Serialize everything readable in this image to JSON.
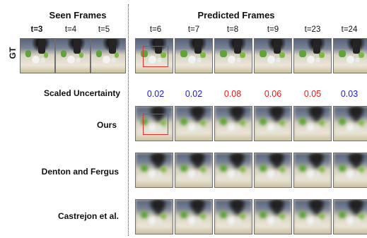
{
  "headers": {
    "seen": "Seen Frames",
    "predicted": "Predicted Frames"
  },
  "seen_timesteps": [
    "t=3",
    "t=4",
    "t=5"
  ],
  "predicted_timesteps": [
    "t=6",
    "t=7",
    "t=8",
    "t=9",
    "t=23",
    "t=24"
  ],
  "row_labels": {
    "gt": "GT",
    "uncertainty": "Scaled Uncertainty",
    "ours": "Ours",
    "denton": "Denton and Fergus",
    "castrejon": "Castrejon et al."
  },
  "uncertainty_values": [
    {
      "value": "0.02",
      "color": "#1a1ad6"
    },
    {
      "value": "0.02",
      "color": "#1a1ad6"
    },
    {
      "value": "0.08",
      "color": "#e01b1b"
    },
    {
      "value": "0.06",
      "color": "#e01b1b"
    },
    {
      "value": "0.05",
      "color": "#e01b1b"
    },
    {
      "value": "0.03",
      "color": "#1a1ad6"
    }
  ],
  "colors": {
    "highlight_box": "#e03030",
    "low_uncertainty": "#1a1ad6",
    "high_uncertainty": "#e01b1b"
  }
}
